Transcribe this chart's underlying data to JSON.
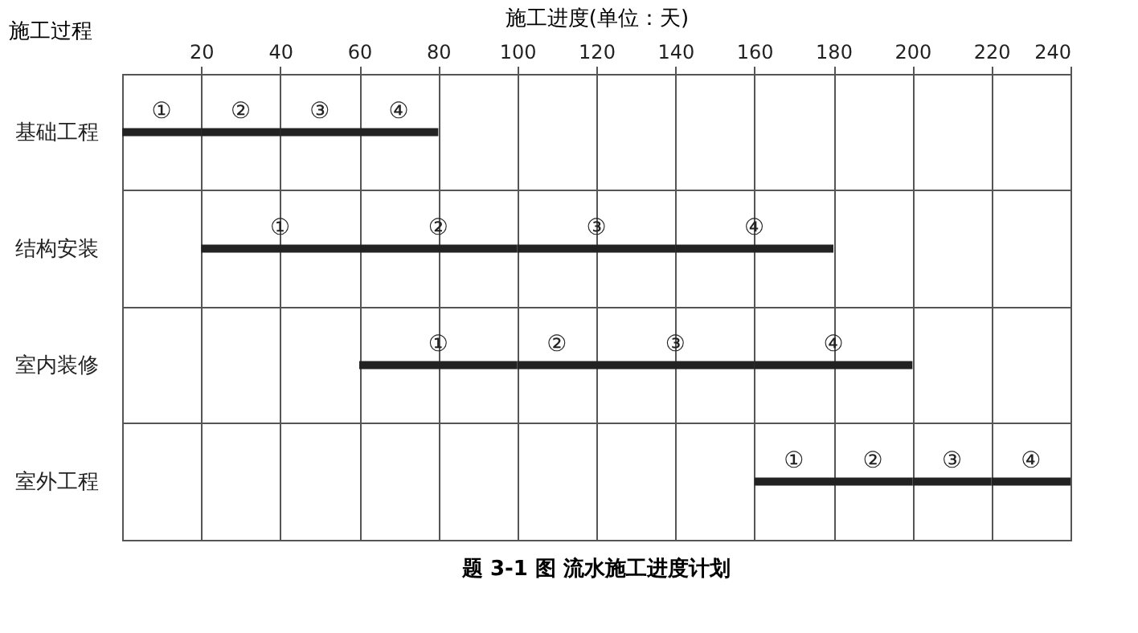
{
  "chart_data": {
    "type": "bar",
    "orientation": "horizontal",
    "title": "题 3-1 图   流水施工进度计划",
    "xlabel": "施工进度(单位：天)",
    "ylabel": "施工过程",
    "categories": [
      "基础工程",
      "结构安装",
      "室内装修",
      "室外工程"
    ],
    "series": [
      {
        "name": "①",
        "color": "#222222",
        "base": [
          0,
          20,
          60,
          160
        ],
        "values": [
          20,
          40,
          40,
          20
        ]
      },
      {
        "name": "②",
        "color": "#222222",
        "base": [
          20,
          60,
          100,
          180
        ],
        "values": [
          20,
          40,
          20,
          20
        ]
      },
      {
        "name": "③",
        "color": "#222222",
        "base": [
          40,
          100,
          120,
          200
        ],
        "values": [
          20,
          40,
          40,
          20
        ]
      },
      {
        "name": "④",
        "color": "#222222",
        "base": [
          60,
          140,
          160,
          220
        ],
        "values": [
          20,
          40,
          40,
          20
        ]
      }
    ],
    "xlim": [
      0,
      240
    ],
    "xticks": [
      20,
      40,
      60,
      80,
      100,
      120,
      140,
      160,
      180,
      200,
      220,
      240
    ],
    "grid": true
  }
}
